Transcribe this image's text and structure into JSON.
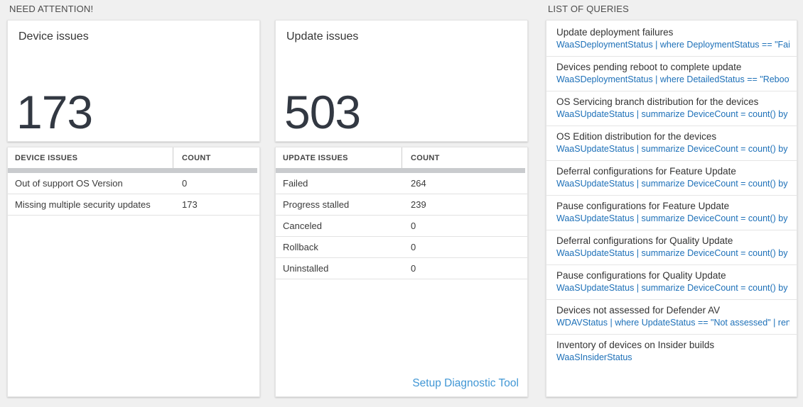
{
  "sections": {
    "need_attention": "NEED ATTENTION!",
    "list_of_queries": "LIST OF QUERIES"
  },
  "device_card": {
    "title": "Device issues",
    "count": "173",
    "table": {
      "headers": [
        "DEVICE ISSUES",
        "COUNT"
      ],
      "rows": [
        {
          "label": "Out of support OS Version",
          "count": "0"
        },
        {
          "label": "Missing multiple security updates",
          "count": "173"
        }
      ]
    }
  },
  "update_card": {
    "title": "Update issues",
    "count": "503",
    "table": {
      "headers": [
        "UPDATE ISSUES",
        "COUNT"
      ],
      "rows": [
        {
          "label": "Failed",
          "count": "264"
        },
        {
          "label": "Progress stalled",
          "count": "239"
        },
        {
          "label": "Canceled",
          "count": "0"
        },
        {
          "label": "Rollback",
          "count": "0"
        },
        {
          "label": "Uninstalled",
          "count": "0"
        }
      ]
    },
    "setup_link": "Setup Diagnostic Tool"
  },
  "queries": {
    "items": [
      {
        "title": "Update deployment failures",
        "query": "WaaSDeploymentStatus | where DeploymentStatus == \"Failed\" |..."
      },
      {
        "title": "Devices pending reboot to complete update",
        "query": "WaaSDeploymentStatus | where DetailedStatus == \"Reboot pend..."
      },
      {
        "title": "OS Servicing branch distribution for the devices",
        "query": "WaaSUpdateStatus | summarize DeviceCount = count() by OSSer..."
      },
      {
        "title": "OS Edition distribution for the devices",
        "query": "WaaSUpdateStatus | summarize DeviceCount = count() by OSEdit..."
      },
      {
        "title": "Deferral configurations for Feature Update",
        "query": "WaaSUpdateStatus | summarize DeviceCount = count() by Featur..."
      },
      {
        "title": "Pause configurations for Feature Update",
        "query": "WaaSUpdateStatus | summarize DeviceCount = count() by Featur..."
      },
      {
        "title": "Deferral configurations for Quality Update",
        "query": "WaaSUpdateStatus | summarize DeviceCount = count() by Qualit..."
      },
      {
        "title": "Pause configurations for Quality Update",
        "query": "WaaSUpdateStatus | summarize DeviceCount = count() by Qualit..."
      },
      {
        "title": "Devices not assessed for Defender AV",
        "query": "WDAVStatus | where UpdateStatus == \"Not assessed\" | render ta..."
      },
      {
        "title": "Inventory of devices on Insider builds",
        "query": "WaaSInsiderStatus"
      }
    ]
  },
  "colors": {
    "query_link_blue": "#1d70b8",
    "setup_link_blue": "#4197d5",
    "page_background": "#f0f0f0",
    "big_number_color": "#323842",
    "scrollbar_gray": "#c9cbce"
  }
}
